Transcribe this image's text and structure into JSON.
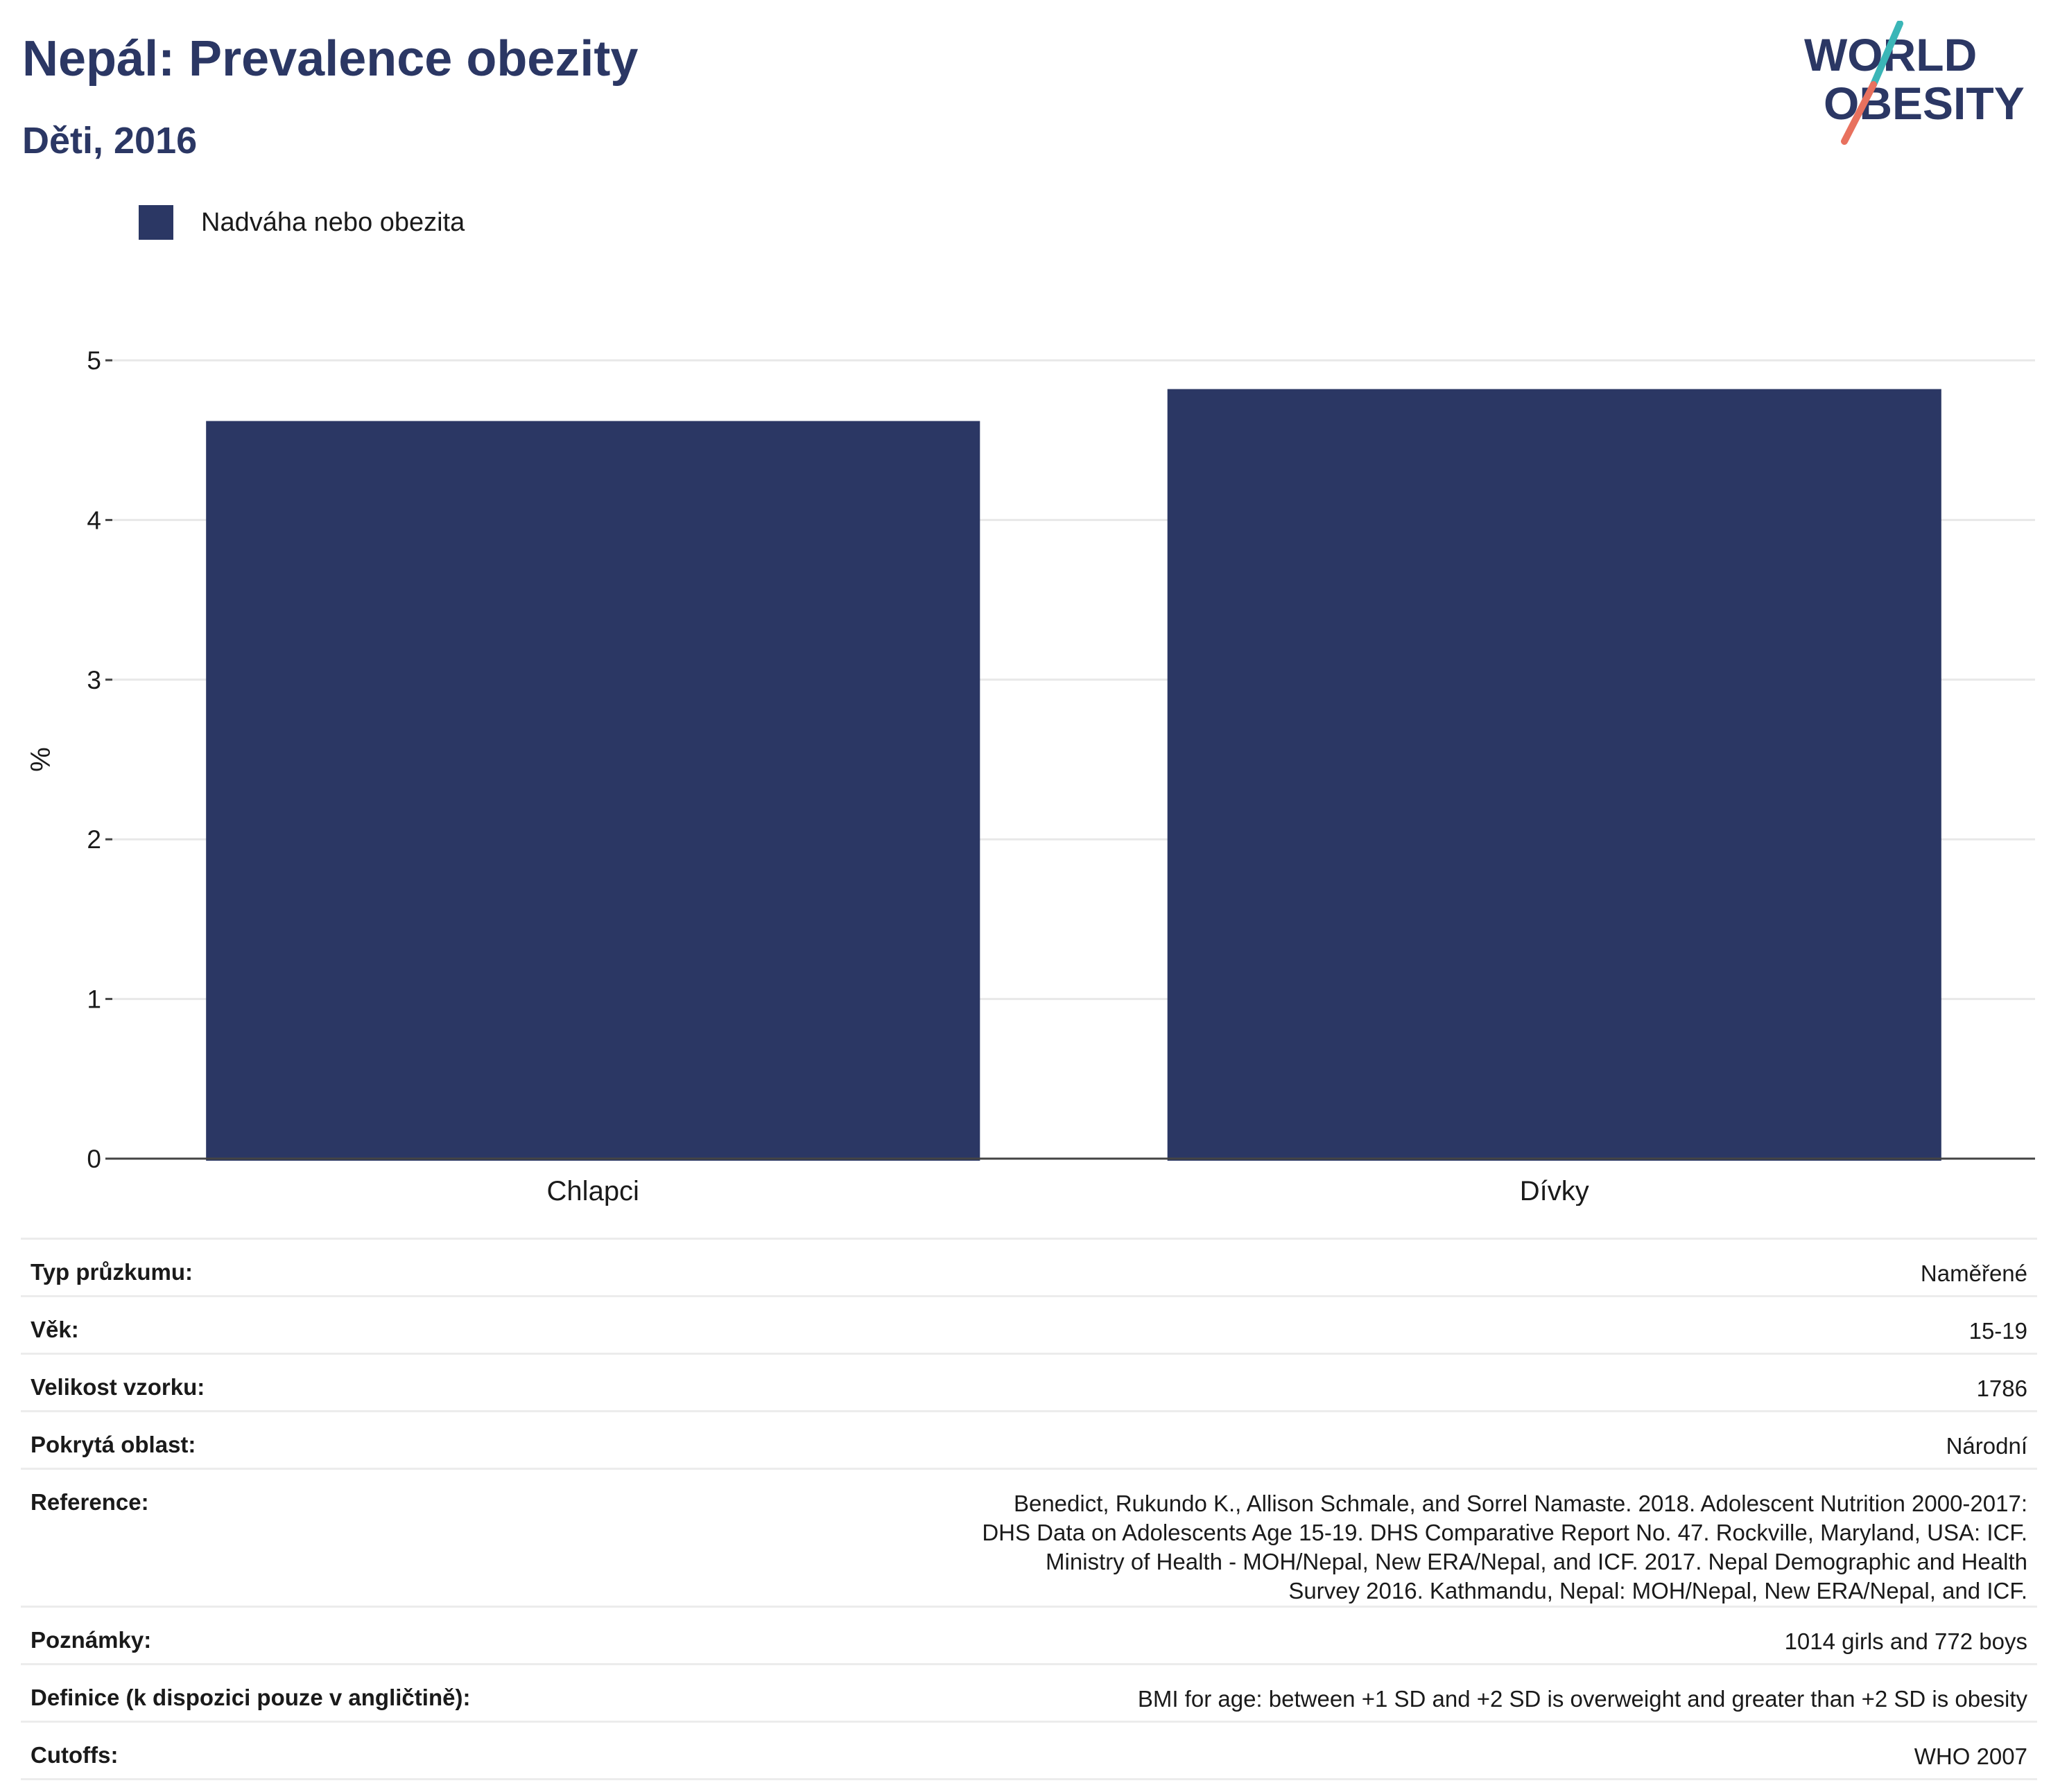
{
  "header": {
    "title": "Nepál: Prevalence obezity",
    "subtitle": "Děti, 2016"
  },
  "logo": {
    "line1": "WORLD",
    "line2": "OBESITY",
    "colors": {
      "text": "#2b3764",
      "slash_top": "#3bb6b7",
      "slash_bottom": "#e8715e"
    }
  },
  "legend": {
    "items": [
      {
        "label": "Nadváha nebo obezita",
        "color": "#2b3764"
      }
    ]
  },
  "chart_data": {
    "type": "bar",
    "categories": [
      "Chlapci",
      "Dívky"
    ],
    "series": [
      {
        "name": "Nadváha nebo obezita",
        "values": [
          4.62,
          4.82
        ],
        "color": "#2b3764"
      }
    ],
    "ylabel": "%",
    "ylim": [
      0,
      5
    ],
    "yticks": [
      0,
      1,
      2,
      3,
      4,
      5
    ],
    "grid": true,
    "legend_position": "top-left"
  },
  "info": {
    "rows": [
      {
        "label": "Typ průzkumu:",
        "value": "Naměřené"
      },
      {
        "label": "Věk:",
        "value": "15-19"
      },
      {
        "label": "Velikost vzorku:",
        "value": "1786"
      },
      {
        "label": "Pokrytá oblast:",
        "value": "Národní"
      },
      {
        "label": "Reference:",
        "value": "Benedict, Rukundo K., Allison Schmale, and Sorrel Namaste. 2018. Adolescent Nutrition 2000-2017: DHS Data on Adolescents Age 15-19. DHS Comparative Report No. 47. Rockville, Maryland, USA: ICF. Ministry of Health - MOH/Nepal, New ERA/Nepal, and ICF. 2017. Nepal Demographic and Health Survey 2016. Kathmandu, Nepal: MOH/Nepal, New ERA/Nepal, and ICF."
      },
      {
        "label": "Poznámky:",
        "value": "1014 girls and 772 boys"
      },
      {
        "label": "Definice (k dispozici pouze v angličtině):",
        "value": "BMI for age: between +1 SD and +2 SD is overweight and greater than +2 SD is obesity"
      },
      {
        "label": "Cutoffs:",
        "value": "WHO 2007"
      }
    ]
  }
}
